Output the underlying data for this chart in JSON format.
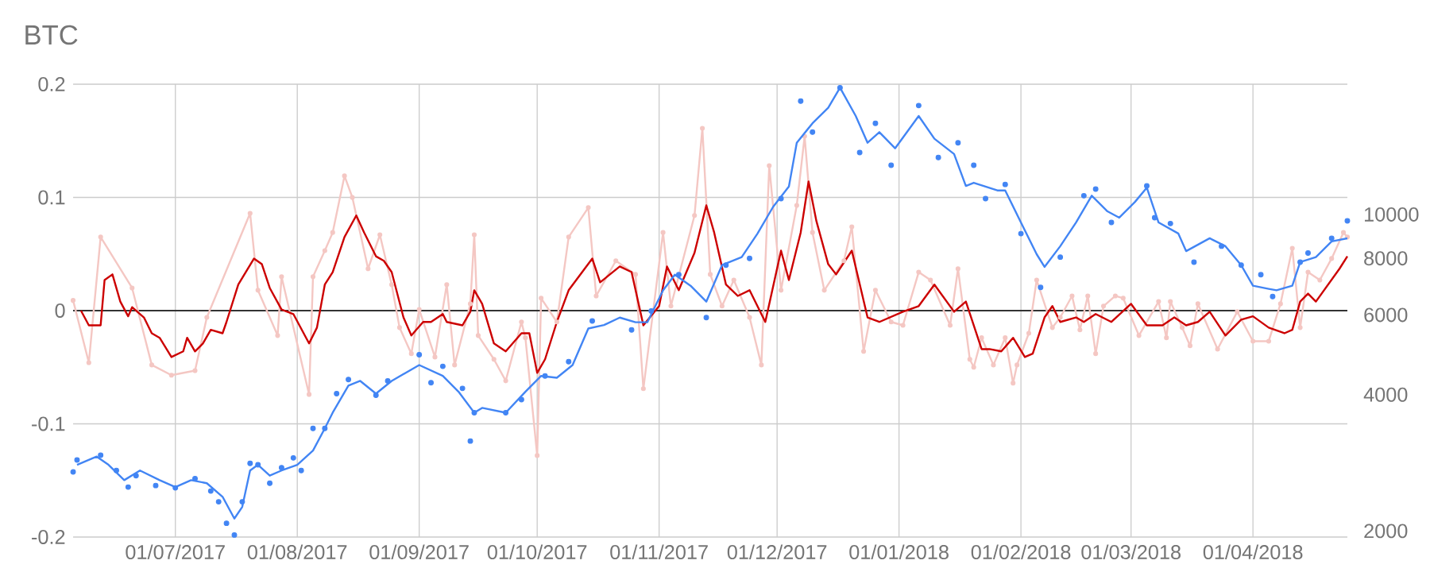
{
  "chart_data": {
    "type": "line",
    "title": "BTC",
    "grid": true,
    "log": "y2",
    "xlim": [
      "2017-06-05",
      "2018-04-25"
    ],
    "xticks": [
      {
        "value": "2017-07-01",
        "label": "01/07/2017"
      },
      {
        "value": "2017-08-01",
        "label": "01/08/2017"
      },
      {
        "value": "2017-09-01",
        "label": "01/09/2017"
      },
      {
        "value": "2017-10-01",
        "label": "01/10/2017"
      },
      {
        "value": "2017-11-01",
        "label": "01/11/2017"
      },
      {
        "value": "2017-12-01",
        "label": "01/12/2017"
      },
      {
        "value": "2018-01-01",
        "label": "01/01/2018"
      },
      {
        "value": "2018-02-01",
        "label": "01/02/2018"
      },
      {
        "value": "2018-03-01",
        "label": "01/03/2018"
      },
      {
        "value": "2018-04-01",
        "label": "01/04/2018"
      }
    ],
    "ylim": [
      -0.2,
      0.2
    ],
    "yticks": [
      -0.2,
      -0.1,
      0,
      0.1,
      0.2
    ],
    "y2lim": [
      1940,
      19400
    ],
    "y2ticks": [
      2000,
      4000,
      6000,
      8000,
      10000
    ],
    "ref_lines": [
      {
        "axis": "y",
        "value": 0,
        "color": "#333333"
      }
    ],
    "series": [
      {
        "color": "#f4c7c3",
        "marker": "circle",
        "x": [
          "2017-06-05",
          "2017-06-09",
          "2017-06-12",
          "2017-06-20",
          "2017-06-25",
          "2017-06-30",
          "2017-07-06",
          "2017-07-09",
          "2017-07-20",
          "2017-07-22",
          "2017-07-27",
          "2017-07-28",
          "2017-08-04",
          "2017-08-05",
          "2017-08-08",
          "2017-08-10",
          "2017-08-13",
          "2017-08-15",
          "2017-08-19",
          "2017-08-22",
          "2017-08-25",
          "2017-08-27",
          "2017-08-30",
          "2017-09-01",
          "2017-09-05",
          "2017-09-08",
          "2017-09-10",
          "2017-09-14",
          "2017-09-15",
          "2017-09-16",
          "2017-09-20",
          "2017-09-23",
          "2017-09-27",
          "2017-09-28",
          "2017-10-01",
          "2017-10-02",
          "2017-10-06",
          "2017-10-09",
          "2017-10-14",
          "2017-10-16",
          "2017-10-21",
          "2017-10-26",
          "2017-10-28",
          "2017-11-02",
          "2017-11-04",
          "2017-11-10",
          "2017-11-12",
          "2017-11-14",
          "2017-11-17",
          "2017-11-20",
          "2017-11-24",
          "2017-11-27",
          "2017-11-29",
          "2017-12-02",
          "2017-12-06",
          "2017-12-08",
          "2017-12-10",
          "2017-12-13",
          "2017-12-18",
          "2017-12-20",
          "2017-12-23",
          "2017-12-26",
          "2017-12-30",
          "2018-01-02",
          "2018-01-06",
          "2018-01-09",
          "2018-01-14",
          "2018-01-16",
          "2018-01-19",
          "2018-01-20",
          "2018-01-22",
          "2018-01-25",
          "2018-01-28",
          "2018-01-30",
          "2018-01-31",
          "2018-02-03",
          "2018-02-05",
          "2018-02-09",
          "2018-02-11",
          "2018-02-14",
          "2018-02-16",
          "2018-02-18",
          "2018-02-20",
          "2018-02-22",
          "2018-02-25",
          "2018-02-27",
          "2018-03-03",
          "2018-03-08",
          "2018-03-10",
          "2018-03-11",
          "2018-03-14",
          "2018-03-16",
          "2018-03-18",
          "2018-03-23",
          "2018-03-28",
          "2018-04-01",
          "2018-04-05",
          "2018-04-08",
          "2018-04-11",
          "2018-04-13",
          "2018-04-15",
          "2018-04-18",
          "2018-04-21",
          "2018-04-24",
          "2018-04-25"
        ],
        "values": [
          0.009,
          -0.046,
          0.065,
          0.02,
          -0.048,
          -0.057,
          -0.053,
          -0.006,
          0.086,
          0.018,
          -0.022,
          0.03,
          -0.074,
          0.03,
          0.053,
          0.069,
          0.119,
          0.1,
          0.037,
          0.067,
          0.023,
          -0.015,
          -0.038,
          0.001,
          -0.041,
          0.023,
          -0.048,
          0.006,
          0.067,
          -0.022,
          -0.043,
          -0.062,
          -0.01,
          -0.024,
          -0.128,
          0.011,
          -0.01,
          0.065,
          0.091,
          0.013,
          0.044,
          0.032,
          -0.069,
          0.069,
          0.004,
          0.084,
          0.161,
          0.032,
          0.004,
          0.027,
          -0.006,
          -0.048,
          0.128,
          0.018,
          0.093,
          0.154,
          0.069,
          0.018,
          0.044,
          0.074,
          -0.036,
          0.018,
          -0.01,
          -0.013,
          0.034,
          0.027,
          -0.013,
          0.037,
          -0.043,
          -0.05,
          -0.024,
          -0.048,
          -0.024,
          -0.064,
          -0.048,
          -0.02,
          0.027,
          -0.015,
          -0.006,
          0.013,
          -0.017,
          0.013,
          -0.038,
          0.004,
          0.013,
          0.011,
          -0.022,
          0.008,
          -0.024,
          0.008,
          -0.015,
          -0.031,
          0.006,
          -0.034,
          -0.001,
          -0.027,
          -0.027,
          0.006,
          0.055,
          -0.015,
          0.034,
          0.027,
          0.046,
          0.069,
          0.065
        ]
      },
      {
        "color": "#cc0000",
        "x": [
          "2017-06-07",
          "2017-06-09",
          "2017-06-12",
          "2017-06-13",
          "2017-06-15",
          "2017-06-17",
          "2017-06-19",
          "2017-06-20",
          "2017-06-23",
          "2017-06-25",
          "2017-06-27",
          "2017-06-30",
          "2017-07-03",
          "2017-07-04",
          "2017-07-06",
          "2017-07-08",
          "2017-07-10",
          "2017-07-13",
          "2017-07-14",
          "2017-07-17",
          "2017-07-21",
          "2017-07-23",
          "2017-07-25",
          "2017-07-28",
          "2017-07-31",
          "2017-08-04",
          "2017-08-06",
          "2017-08-08",
          "2017-08-10",
          "2017-08-13",
          "2017-08-16",
          "2017-08-18",
          "2017-08-21",
          "2017-08-23",
          "2017-08-25",
          "2017-08-28",
          "2017-08-30",
          "2017-09-02",
          "2017-09-04",
          "2017-09-07",
          "2017-09-08",
          "2017-09-12",
          "2017-09-14",
          "2017-09-15",
          "2017-09-17",
          "2017-09-20",
          "2017-09-23",
          "2017-09-27",
          "2017-09-29",
          "2017-10-01",
          "2017-10-03",
          "2017-10-06",
          "2017-10-09",
          "2017-10-15",
          "2017-10-17",
          "2017-10-22",
          "2017-10-25",
          "2017-10-28",
          "2017-11-01",
          "2017-11-03",
          "2017-11-06",
          "2017-11-10",
          "2017-11-13",
          "2017-11-15",
          "2017-11-18",
          "2017-11-21",
          "2017-11-24",
          "2017-11-28",
          "2017-12-02",
          "2017-12-04",
          "2017-12-07",
          "2017-12-09",
          "2017-12-11",
          "2017-12-14",
          "2017-12-16",
          "2017-12-20",
          "2017-12-24",
          "2017-12-27",
          "2018-01-02",
          "2018-01-06",
          "2018-01-10",
          "2018-01-15",
          "2018-01-18",
          "2018-01-22",
          "2018-01-24",
          "2018-01-27",
          "2018-01-30",
          "2018-02-02",
          "2018-02-04",
          "2018-02-07",
          "2018-02-09",
          "2018-02-11",
          "2018-02-15",
          "2018-02-17",
          "2018-02-20",
          "2018-02-24",
          "2018-03-01",
          "2018-03-05",
          "2018-03-09",
          "2018-03-12",
          "2018-03-15",
          "2018-03-18",
          "2018-03-21",
          "2018-03-25",
          "2018-03-29",
          "2018-04-01",
          "2018-04-05",
          "2018-04-09",
          "2018-04-11",
          "2018-04-13",
          "2018-04-15",
          "2018-04-17",
          "2018-04-23",
          "2018-04-25"
        ],
        "values": [
          0,
          -0.013,
          -0.013,
          0.027,
          0.032,
          0.008,
          -0.005,
          0.003,
          -0.006,
          -0.02,
          -0.024,
          -0.041,
          -0.036,
          -0.024,
          -0.036,
          -0.029,
          -0.017,
          -0.02,
          -0.01,
          0.023,
          0.046,
          0.041,
          0.02,
          0.001,
          -0.003,
          -0.029,
          -0.015,
          0.023,
          0.034,
          0.065,
          0.084,
          0.069,
          0.048,
          0.044,
          0.034,
          -0.006,
          -0.022,
          -0.01,
          -0.01,
          -0.003,
          -0.01,
          -0.013,
          -0.001,
          0.018,
          0.006,
          -0.029,
          -0.036,
          -0.02,
          -0.02,
          -0.055,
          -0.043,
          -0.01,
          0.018,
          0.046,
          0.025,
          0.039,
          0.034,
          -0.013,
          0.004,
          0.039,
          0.018,
          0.051,
          0.093,
          0.069,
          0.023,
          0.013,
          0.018,
          -0.01,
          0.053,
          0.027,
          0.069,
          0.114,
          0.079,
          0.041,
          0.032,
          0.053,
          -0.006,
          -0.01,
          -0.001,
          0.004,
          0.023,
          -0.001,
          0.008,
          -0.034,
          -0.034,
          -0.036,
          -0.024,
          -0.041,
          -0.038,
          -0.006,
          0.004,
          -0.01,
          -0.006,
          -0.01,
          -0.003,
          -0.01,
          0.006,
          -0.013,
          -0.013,
          -0.006,
          -0.013,
          -0.01,
          -0.001,
          -0.022,
          -0.008,
          -0.005,
          -0.015,
          -0.02,
          -0.017,
          0.008,
          0.015,
          0.008,
          0.037,
          0.048
        ]
      },
      {
        "type": "scatter",
        "axis": "y2",
        "color": "#4285f4",
        "marker": "circle",
        "x": [
          "2017-06-05",
          "2017-06-06",
          "2017-06-12",
          "2017-06-16",
          "2017-06-19",
          "2017-06-21",
          "2017-06-26",
          "2017-07-01",
          "2017-07-06",
          "2017-07-10",
          "2017-07-12",
          "2017-07-14",
          "2017-07-16",
          "2017-07-18",
          "2017-07-20",
          "2017-07-22",
          "2017-07-25",
          "2017-07-28",
          "2017-07-31",
          "2017-08-02",
          "2017-08-05",
          "2017-08-08",
          "2017-08-11",
          "2017-08-14",
          "2017-08-21",
          "2017-08-24",
          "2017-09-01",
          "2017-09-04",
          "2017-09-07",
          "2017-09-12",
          "2017-09-14",
          "2017-09-15",
          "2017-09-23",
          "2017-09-27",
          "2017-10-03",
          "2017-10-09",
          "2017-10-15",
          "2017-10-25",
          "2017-10-30",
          "2017-11-06",
          "2017-11-13",
          "2017-11-18",
          "2017-11-24",
          "2017-12-02",
          "2017-12-07",
          "2017-12-10",
          "2017-12-17",
          "2017-12-22",
          "2017-12-26",
          "2017-12-30",
          "2018-01-06",
          "2018-01-11",
          "2018-01-16",
          "2018-01-20",
          "2018-01-23",
          "2018-01-28",
          "2018-02-01",
          "2018-02-06",
          "2018-02-11",
          "2018-02-17",
          "2018-02-20",
          "2018-02-24",
          "2018-03-05",
          "2018-03-07",
          "2018-03-11",
          "2018-03-17",
          "2018-03-24",
          "2018-03-29",
          "2018-04-03",
          "2018-04-06",
          "2018-04-13",
          "2018-04-15",
          "2018-04-21",
          "2018-04-25"
        ],
        "values": [
          2700,
          2870,
          2940,
          2720,
          2500,
          2650,
          2520,
          2490,
          2610,
          2450,
          2320,
          2080,
          1960,
          2320,
          2820,
          2800,
          2550,
          2760,
          2900,
          2720,
          3370,
          3370,
          4020,
          4320,
          3990,
          4290,
          4900,
          4250,
          4620,
          4130,
          3160,
          3650,
          3650,
          3900,
          4400,
          4730,
          5820,
          5560,
          6120,
          7360,
          5920,
          7730,
          8000,
          10840,
          17800,
          15200,
          19050,
          13700,
          15900,
          12840,
          17400,
          13360,
          14400,
          12840,
          10840,
          11650,
          9070,
          6900,
          8050,
          11000,
          11380,
          9600,
          11560,
          9840,
          9550,
          7850,
          8510,
          7730,
          7360,
          6590,
          7850,
          8220,
          8860,
          9680
        ]
      },
      {
        "axis": "y2",
        "color": "#4285f4",
        "x": [
          "2017-06-06",
          "2017-06-11",
          "2017-06-14",
          "2017-06-18",
          "2017-06-22",
          "2017-06-27",
          "2017-07-01",
          "2017-07-05",
          "2017-07-09",
          "2017-07-13",
          "2017-07-16",
          "2017-07-18",
          "2017-07-20",
          "2017-07-22",
          "2017-07-25",
          "2017-07-28",
          "2017-08-01",
          "2017-08-05",
          "2017-08-08",
          "2017-08-10",
          "2017-08-14",
          "2017-08-17",
          "2017-08-21",
          "2017-08-25",
          "2017-09-01",
          "2017-09-07",
          "2017-09-11",
          "2017-09-15",
          "2017-09-17",
          "2017-09-23",
          "2017-09-28",
          "2017-10-02",
          "2017-10-06",
          "2017-10-10",
          "2017-10-14",
          "2017-10-18",
          "2017-10-22",
          "2017-10-26",
          "2017-10-29",
          "2017-11-02",
          "2017-11-05",
          "2017-11-09",
          "2017-11-13",
          "2017-11-17",
          "2017-11-22",
          "2017-11-26",
          "2017-11-30",
          "2017-12-04",
          "2017-12-06",
          "2017-12-10",
          "2017-12-14",
          "2017-12-17",
          "2017-12-21",
          "2017-12-24",
          "2017-12-27",
          "2017-12-31",
          "2018-01-06",
          "2018-01-10",
          "2018-01-15",
          "2018-01-18",
          "2018-01-20",
          "2018-01-26",
          "2018-01-28",
          "2018-02-01",
          "2018-02-05",
          "2018-02-07",
          "2018-02-11",
          "2018-02-15",
          "2018-02-19",
          "2018-02-23",
          "2018-02-26",
          "2018-03-02",
          "2018-03-05",
          "2018-03-08",
          "2018-03-13",
          "2018-03-15",
          "2018-03-21",
          "2018-03-25",
          "2018-03-29",
          "2018-04-01",
          "2018-04-05",
          "2018-04-07",
          "2018-04-11",
          "2018-04-13",
          "2018-04-17",
          "2018-04-21",
          "2018-04-25"
        ],
        "values": [
          2800,
          2920,
          2800,
          2590,
          2720,
          2590,
          2500,
          2590,
          2550,
          2380,
          2130,
          2260,
          2720,
          2800,
          2650,
          2720,
          2800,
          3010,
          3370,
          3650,
          4190,
          4290,
          4020,
          4290,
          4650,
          4400,
          4060,
          3650,
          3740,
          3650,
          4060,
          4400,
          4360,
          4650,
          5600,
          5700,
          5920,
          5780,
          5780,
          6800,
          7360,
          6960,
          6420,
          7730,
          8050,
          9070,
          10400,
          11530,
          14400,
          15900,
          17200,
          19050,
          16500,
          14400,
          15200,
          14000,
          16500,
          14700,
          13600,
          11560,
          11750,
          11300,
          11300,
          9600,
          8170,
          7660,
          8510,
          9600,
          11000,
          10160,
          9840,
          10660,
          11460,
          9600,
          9080,
          8300,
          8860,
          8510,
          7730,
          6960,
          6850,
          6800,
          6960,
          7850,
          8050,
          8720,
          8860
        ]
      }
    ]
  }
}
